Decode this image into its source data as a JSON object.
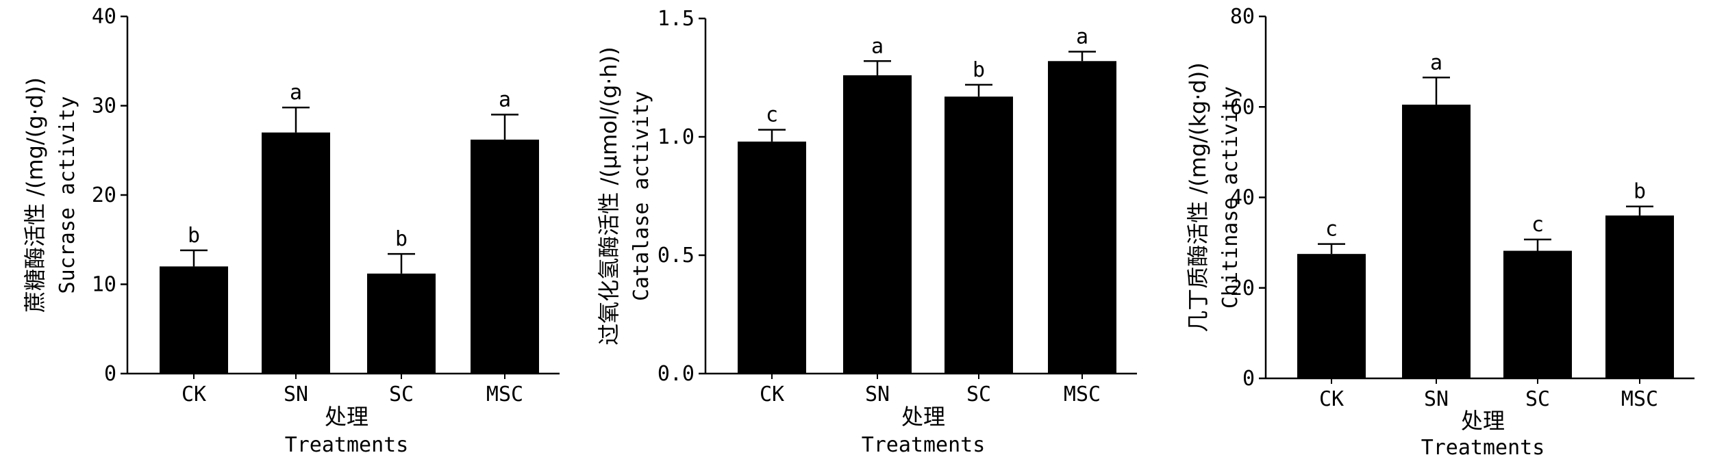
{
  "chart_data": [
    {
      "type": "bar",
      "categories": [
        "CK",
        "SN",
        "SC",
        "MSC"
      ],
      "values": [
        12,
        27,
        11.2,
        26.2
      ],
      "errors": [
        1.8,
        2.8,
        2.2,
        2.8
      ],
      "significance": [
        "b",
        "a",
        "b",
        "a"
      ],
      "ylim": [
        0,
        40
      ],
      "yticks": [
        0,
        10,
        20,
        30,
        40
      ],
      "ytick_labels": [
        "0",
        "10",
        "20",
        "30",
        "40"
      ],
      "ylabel_cn": "蔗糖酶活性 /(mg/(g·d))",
      "ylabel_en": "Sucrase activity",
      "xlabel_cn": "处理",
      "xlabel_en": "Treatments",
      "bar_color": "#000000"
    },
    {
      "type": "bar",
      "categories": [
        "CK",
        "SN",
        "SC",
        "MSC"
      ],
      "values": [
        0.98,
        1.26,
        1.17,
        1.32
      ],
      "errors": [
        0.05,
        0.06,
        0.05,
        0.04
      ],
      "significance": [
        "c",
        "a",
        "b",
        "a"
      ],
      "ylim": [
        0,
        1.5
      ],
      "yticks": [
        0,
        0.5,
        1.0,
        1.5
      ],
      "ytick_labels": [
        "0.0",
        "0.5",
        "1.0",
        "1.5"
      ],
      "ylabel_cn": "过氧化氢酶活性 /(μmol/(g·h))",
      "ylabel_en": "Catalase activity",
      "xlabel_cn": "处理",
      "xlabel_en": "Treatments",
      "bar_color": "#000000"
    },
    {
      "type": "bar",
      "categories": [
        "CK",
        "SN",
        "SC",
        "MSC"
      ],
      "values": [
        27.5,
        60.5,
        28.2,
        36
      ],
      "errors": [
        2.2,
        6,
        2.5,
        2
      ],
      "significance": [
        "c",
        "a",
        "c",
        "b"
      ],
      "ylim": [
        0,
        80
      ],
      "yticks": [
        0,
        20,
        40,
        60,
        80
      ],
      "ytick_labels": [
        "0",
        "20",
        "40",
        "60",
        "80"
      ],
      "ylabel_cn": "几丁质酶活性 /(mg/(kg·d))",
      "ylabel_en": "Chitinase activity",
      "xlabel_cn": "处理",
      "xlabel_en": "Treatments",
      "bar_color": "#000000"
    }
  ]
}
